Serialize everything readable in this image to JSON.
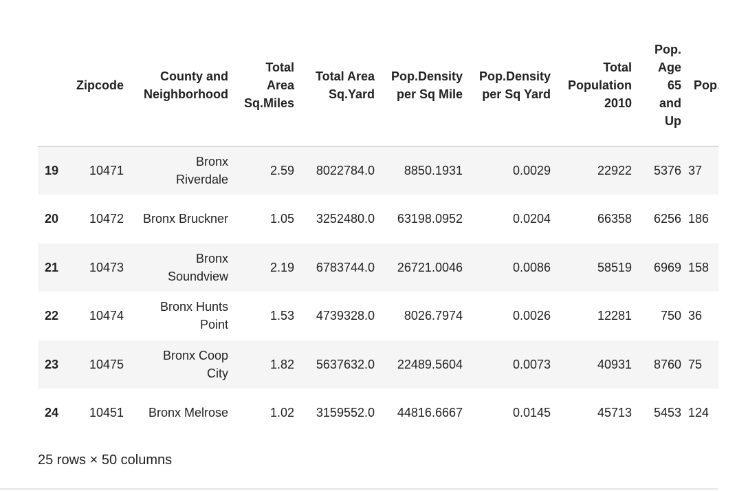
{
  "table": {
    "columns": [
      "Zipcode",
      "County and Neighborhood",
      "Total Area Sq.Miles",
      "Total Area Sq.Yard",
      "Pop.Density per Sq Mile",
      "Pop.Density per Sq Yard",
      "Total Population 2010",
      "Pop. Age 65 and Up",
      "Pop. Under"
    ],
    "rows": [
      {
        "index": "19",
        "cells": [
          "10471",
          "Bronx Riverdale",
          "2.59",
          "8022784.0",
          "8850.1931",
          "0.0029",
          "22922",
          "5376",
          "37"
        ]
      },
      {
        "index": "20",
        "cells": [
          "10472",
          "Bronx Bruckner",
          "1.05",
          "3252480.0",
          "63198.0952",
          "0.0204",
          "66358",
          "6256",
          "186"
        ]
      },
      {
        "index": "21",
        "cells": [
          "10473",
          "Bronx Soundview",
          "2.19",
          "6783744.0",
          "26721.0046",
          "0.0086",
          "58519",
          "6969",
          "158"
        ]
      },
      {
        "index": "22",
        "cells": [
          "10474",
          "Bronx Hunts Point",
          "1.53",
          "4739328.0",
          "8026.7974",
          "0.0026",
          "12281",
          "750",
          "36"
        ]
      },
      {
        "index": "23",
        "cells": [
          "10475",
          "Bronx Coop City",
          "1.82",
          "5637632.0",
          "22489.5604",
          "0.0073",
          "40931",
          "8760",
          "75"
        ]
      },
      {
        "index": "24",
        "cells": [
          "10451",
          "Bronx Melrose",
          "1.02",
          "3159552.0",
          "44816.6667",
          "0.0145",
          "45713",
          "5453",
          "124"
        ]
      }
    ]
  },
  "footer": "25 rows × 50 columns"
}
